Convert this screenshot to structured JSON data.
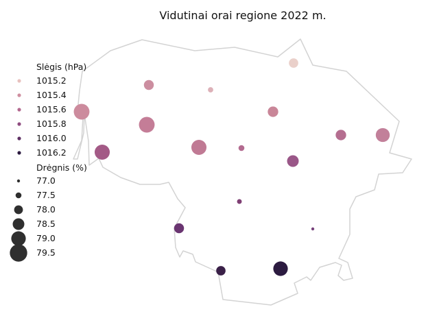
{
  "title": "Vidutinai orai regione 2022 m.",
  "legend": {
    "pressure_title": "Slėgis (hPa)",
    "pressure_items": [
      {
        "label": "1015.2",
        "color": "#e8c2bf"
      },
      {
        "label": "1015.4",
        "color": "#cf8fa0"
      },
      {
        "label": "1015.6",
        "color": "#b3698f"
      },
      {
        "label": "1015.8",
        "color": "#8f4c80"
      },
      {
        "label": "1016.0",
        "color": "#5e3064"
      },
      {
        "label": "1016.2",
        "color": "#2c1b40"
      }
    ],
    "humidity_title": "Drėgnis (%)",
    "humidity_items": [
      {
        "label": "77.0",
        "value": 77.0
      },
      {
        "label": "77.5",
        "value": 77.5
      },
      {
        "label": "78.0",
        "value": 78.0
      },
      {
        "label": "78.5",
        "value": 78.5
      },
      {
        "label": "79.0",
        "value": 79.0
      },
      {
        "label": "79.5",
        "value": 79.5
      }
    ],
    "humidity_marker_color": "#2f2f2f"
  },
  "chart_data": {
    "type": "scatter",
    "map": "bubble map of region",
    "encoding": {
      "color": "pressure_hpa",
      "size": "humidity_percent"
    },
    "points": [
      {
        "pressure_hpa": 1015.2,
        "humidity_percent": 78.1,
        "color": "#ead0ca"
      },
      {
        "pressure_hpa": 1015.4,
        "humidity_percent": 78.2,
        "color": "#cc8ea0"
      },
      {
        "pressure_hpa": 1015.3,
        "humidity_percent": 77.4,
        "color": "#ddb1b8"
      },
      {
        "pressure_hpa": 1015.4,
        "humidity_percent": 79.2,
        "color": "#cc8b9d"
      },
      {
        "pressure_hpa": 1015.4,
        "humidity_percent": 78.3,
        "color": "#c98698"
      },
      {
        "pressure_hpa": 1015.5,
        "humidity_percent": 79.2,
        "color": "#c47d97"
      },
      {
        "pressure_hpa": 1015.7,
        "humidity_percent": 79.1,
        "color": "#a35a86"
      },
      {
        "pressure_hpa": 1015.5,
        "humidity_percent": 79.1,
        "color": "#c07a94"
      },
      {
        "pressure_hpa": 1015.6,
        "humidity_percent": 77.5,
        "color": "#b36b90"
      },
      {
        "pressure_hpa": 1015.6,
        "humidity_percent": 78.3,
        "color": "#b56e90"
      },
      {
        "pressure_hpa": 1015.5,
        "humidity_percent": 78.9,
        "color": "#c2809a"
      },
      {
        "pressure_hpa": 1015.7,
        "humidity_percent": 78.5,
        "color": "#9a5788"
      },
      {
        "pressure_hpa": 1015.8,
        "humidity_percent": 77.3,
        "color": "#7f3f74"
      },
      {
        "pressure_hpa": 1015.9,
        "humidity_percent": 78.2,
        "color": "#6a3571"
      },
      {
        "pressure_hpa": 1015.9,
        "humidity_percent": 77.0,
        "color": "#76407a"
      },
      {
        "pressure_hpa": 1016.1,
        "humidity_percent": 78.1,
        "color": "#3a2048"
      },
      {
        "pressure_hpa": 1016.2,
        "humidity_percent": 79.0,
        "color": "#2c1b40"
      }
    ]
  }
}
